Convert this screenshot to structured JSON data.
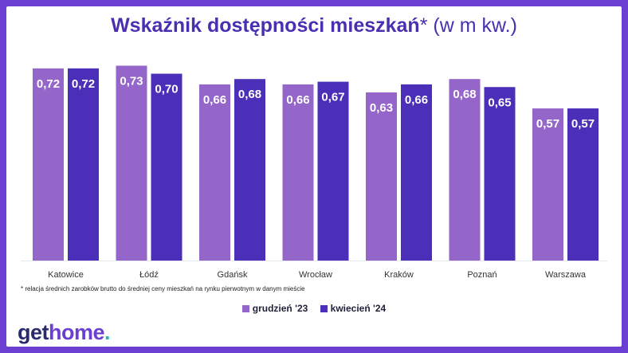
{
  "title": {
    "main": "Wskaźnik dostępności mieszkań",
    "suffix": "* (w m kw.)"
  },
  "footnote": "* relacja średnich zarobków brutto do średniej ceny mieszkań na rynku pierwotnym w danym mieście",
  "brand": {
    "part1": "get",
    "part2": "home",
    "dot": "."
  },
  "colors": {
    "series1": "#9466c9",
    "series2": "#4b2fb8",
    "background": "#6a3fd1"
  },
  "chart_data": {
    "type": "bar",
    "categories": [
      "Katowice",
      "Łódź",
      "Gdańsk",
      "Wrocław",
      "Kraków",
      "Poznań",
      "Warszawa"
    ],
    "series": [
      {
        "name": "grudzień '23",
        "values": [
          0.72,
          0.73,
          0.66,
          0.66,
          0.63,
          0.68,
          0.57
        ],
        "labels": [
          "0,72",
          "0,73",
          "0,66",
          "0,66",
          "0,63",
          "0,68",
          "0,57"
        ]
      },
      {
        "name": "kwiecień '24",
        "values": [
          0.72,
          0.7,
          0.68,
          0.67,
          0.66,
          0.65,
          0.57
        ],
        "labels": [
          "0,72",
          "0,70",
          "0,68",
          "0,67",
          "0,66",
          "0,65",
          "0,57"
        ]
      }
    ],
    "legend": "bottom-center",
    "grid": false
  }
}
